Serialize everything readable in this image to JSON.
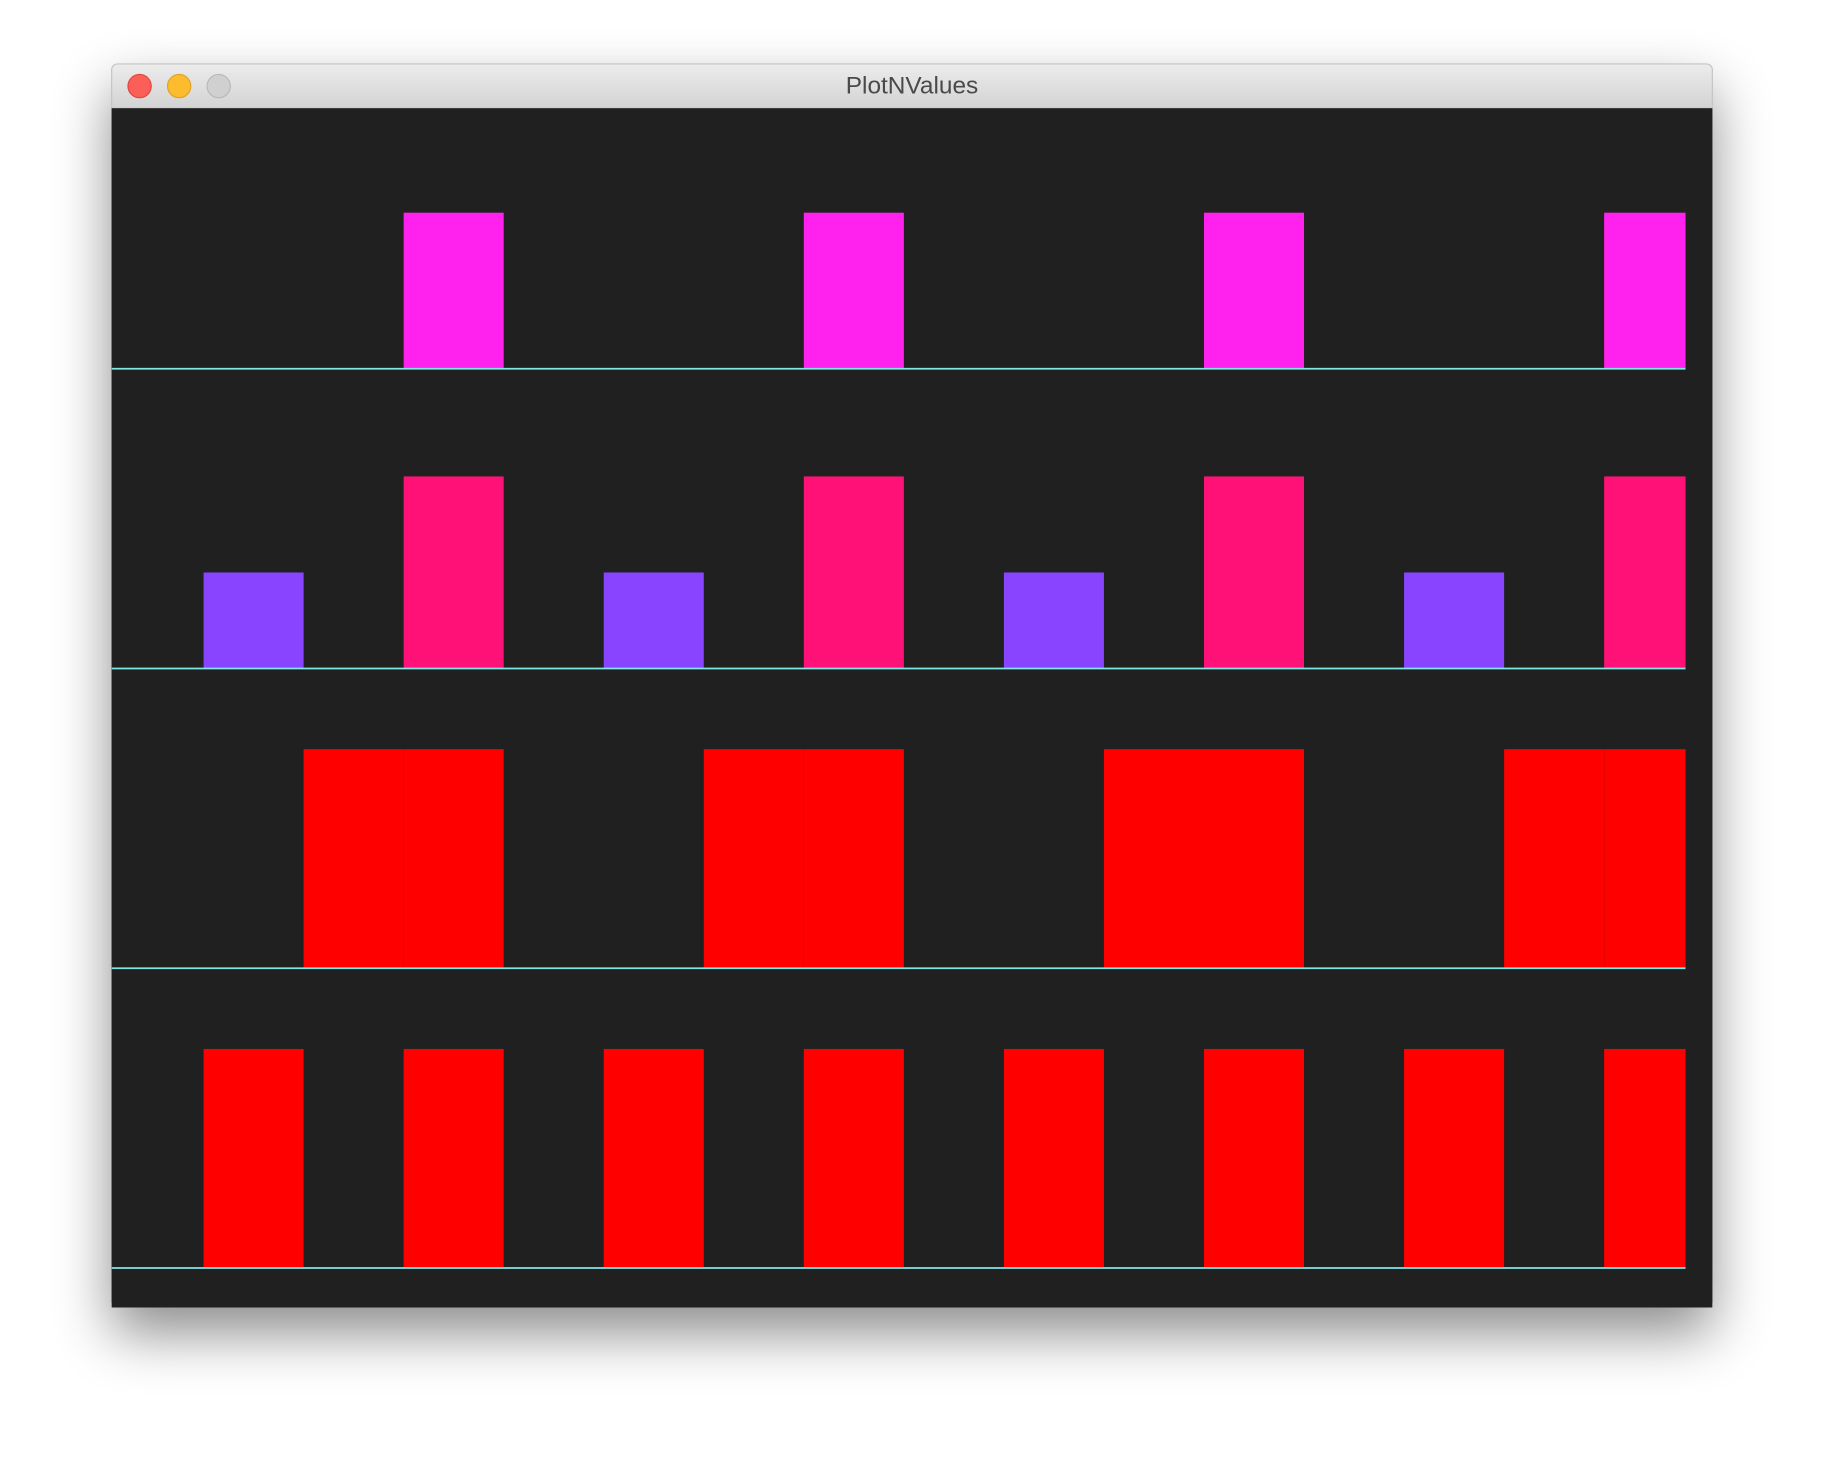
{
  "window": {
    "title": "PlotNValues"
  },
  "chart_data": [
    {
      "type": "bar",
      "ylim": [
        0,
        1
      ],
      "series": [
        {
          "color": "#ff22ee",
          "values": [
            0,
            0,
            0,
            0.52,
            0,
            0,
            0,
            0.52,
            0,
            0,
            0,
            0.52,
            0,
            0,
            0,
            0.52
          ]
        }
      ]
    },
    {
      "type": "bar",
      "ylim": [
        0,
        1
      ],
      "series": [
        {
          "color": "#8844ff",
          "values": [
            0,
            0.32,
            0,
            0,
            0,
            0.32,
            0,
            0,
            0,
            0.32,
            0,
            0,
            0,
            0.32,
            0,
            0
          ]
        },
        {
          "color": "#ff1177",
          "values": [
            0,
            0,
            0,
            0.64,
            0,
            0,
            0,
            0.64,
            0,
            0,
            0,
            0.64,
            0,
            0,
            0,
            0.64
          ]
        }
      ]
    },
    {
      "type": "bar",
      "ylim": [
        0,
        1
      ],
      "series": [
        {
          "color": "#ff0000",
          "values": [
            0,
            0,
            0.73,
            0.73,
            0,
            0,
            0.73,
            0.73,
            0,
            0,
            0.73,
            0.73,
            0,
            0,
            0.73,
            0.73
          ]
        }
      ]
    },
    {
      "type": "bar",
      "ylim": [
        0,
        1
      ],
      "series": [
        {
          "color": "#ff0000",
          "values": [
            0,
            0.73,
            0,
            0.73,
            0,
            0.73,
            0,
            0.73,
            0,
            0.73,
            0,
            0.73,
            0,
            0.73,
            0,
            0.73
          ]
        }
      ]
    }
  ]
}
